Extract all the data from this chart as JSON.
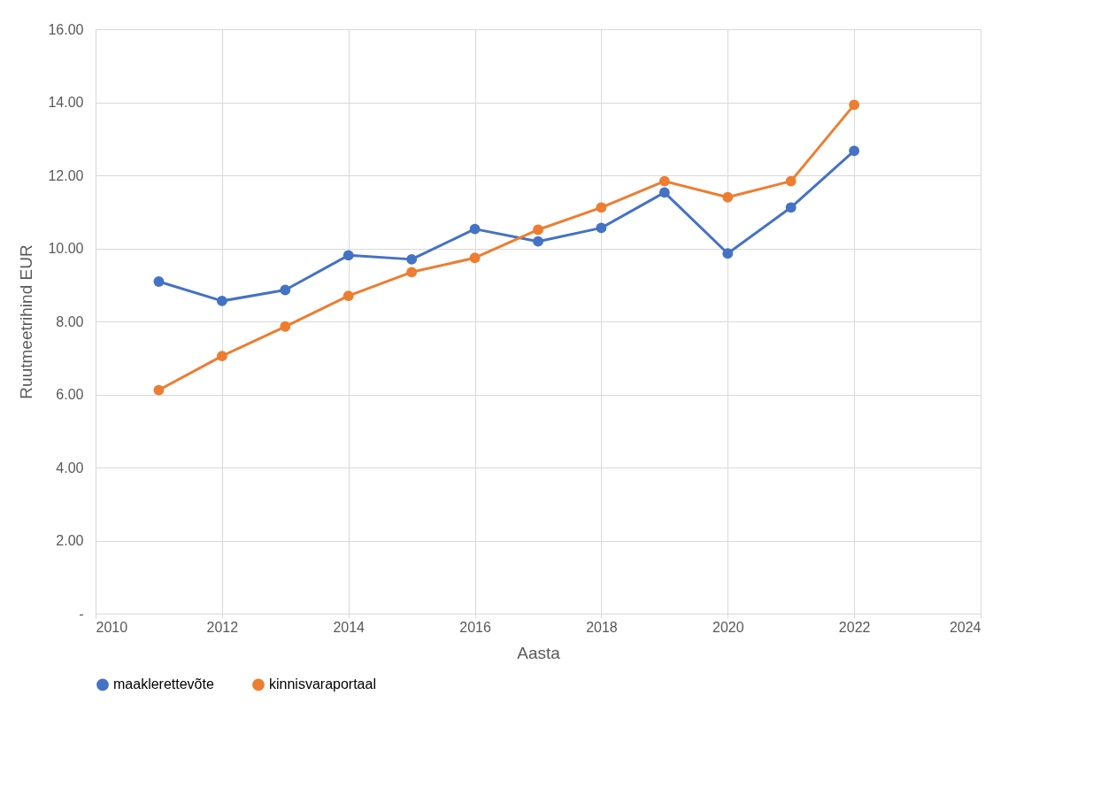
{
  "chart_data": {
    "type": "line",
    "xlabel": "Aasta",
    "ylabel": "Ruutmeetrihind EUR",
    "x": [
      2011,
      2012,
      2013,
      2014,
      2015,
      2016,
      2017,
      2018,
      2019,
      2020,
      2021,
      2022
    ],
    "series": [
      {
        "name": "maaklerettevõte",
        "color": "#4472c4",
        "values": [
          9.09,
          8.56,
          8.86,
          9.81,
          9.7,
          10.53,
          10.19,
          10.56,
          11.53,
          9.86,
          11.12,
          12.67
        ]
      },
      {
        "name": "kinnisvaraportaal",
        "color": "#ed7d31",
        "values": [
          6.12,
          7.05,
          7.86,
          8.7,
          9.35,
          9.74,
          10.51,
          11.12,
          11.84,
          11.4,
          11.84,
          13.93
        ]
      }
    ],
    "xlim": [
      2010,
      2024
    ],
    "xticks": [
      2010,
      2012,
      2014,
      2016,
      2018,
      2020,
      2022,
      2024
    ],
    "ylim": [
      0,
      16
    ],
    "yticks": [
      {
        "value": 0,
        "label": "-"
      },
      {
        "value": 2,
        "label": "2.00"
      },
      {
        "value": 4,
        "label": "4.00"
      },
      {
        "value": 6,
        "label": "6.00"
      },
      {
        "value": 8,
        "label": "8.00"
      },
      {
        "value": 10,
        "label": "10.00"
      },
      {
        "value": 12,
        "label": "12.00"
      },
      {
        "value": 14,
        "label": "14.00"
      },
      {
        "value": 16,
        "label": "16.00"
      }
    ],
    "grid": true,
    "legend": "bottom",
    "marker": "circle",
    "line_style": "solid"
  }
}
